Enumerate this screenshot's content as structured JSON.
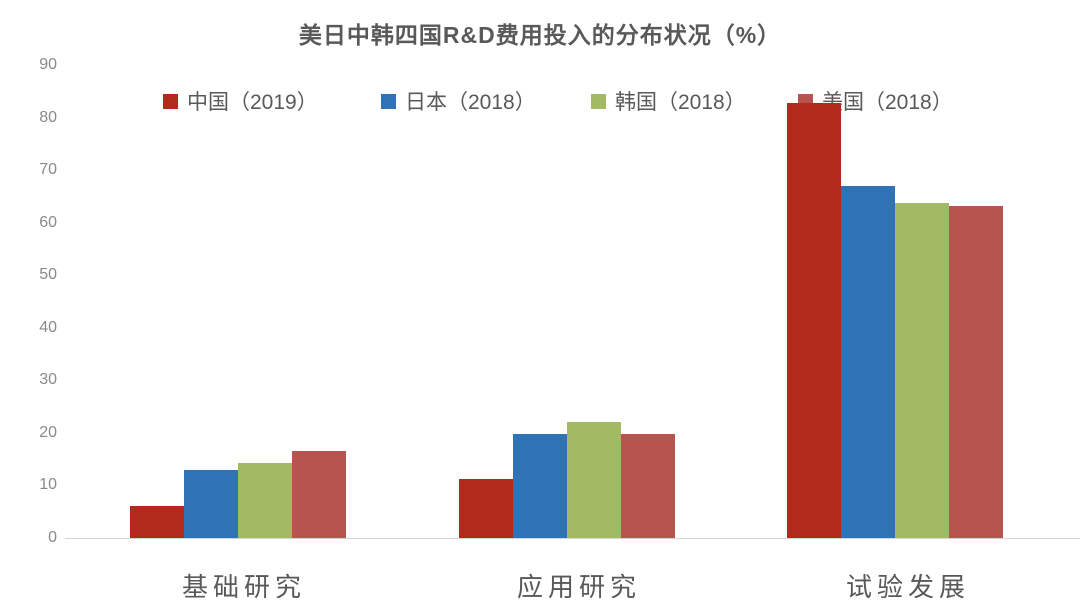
{
  "chart_data": {
    "type": "bar",
    "title": "美日中韩四国R&D费用投入的分布状况（%）",
    "categories": [
      "基础研究",
      "应用研究",
      "试验发展"
    ],
    "series": [
      {
        "name": "中国（2019）",
        "color": "#b22a1b",
        "values": [
          6.0,
          11.3,
          82.7
        ]
      },
      {
        "name": "日本（2018）",
        "color": "#2f73b6",
        "values": [
          13.0,
          19.8,
          67.0
        ]
      },
      {
        "name": "韩国（2018）",
        "color": "#a3b964",
        "values": [
          14.2,
          22.0,
          63.8
        ]
      },
      {
        "name": "美国（2018）",
        "color": "#b85450",
        "values": [
          16.6,
          19.8,
          63.2
        ]
      }
    ],
    "xlabel": "",
    "ylabel": "",
    "ylim": [
      0,
      90
    ],
    "yticks": [
      0,
      10,
      20,
      30,
      40,
      50,
      60,
      70,
      80,
      90
    ],
    "grid": false,
    "legend_position": "top"
  },
  "colors": {
    "title_text": "#595959",
    "axis_tick_text": "#8a8a8a",
    "category_text": "#595959",
    "axis_line": "#d3d3d3",
    "background": "#ffffff"
  }
}
